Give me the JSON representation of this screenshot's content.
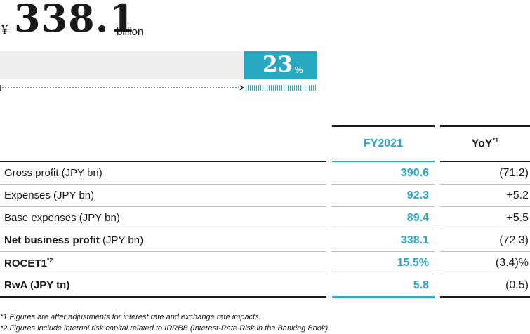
{
  "headline": {
    "currency": "¥",
    "value": "338.1",
    "unit": "billion"
  },
  "share_bar": {
    "percent": 23,
    "value": "23",
    "sign": "%",
    "fill_color": "#29a8c4",
    "bg_color": "#efefef"
  },
  "table": {
    "headers": {
      "fy": "FY2021",
      "yoy": "YoY",
      "yoy_note": "*1"
    },
    "rows": [
      {
        "label": "Gross profit (JPY bn)",
        "fy": "390.6",
        "yoy": "(71.2)"
      },
      {
        "label": "Expenses (JPY bn)",
        "fy": "92.3",
        "yoy": "+5.2"
      },
      {
        "label": "Base expenses (JPY bn)",
        "fy": "89.4",
        "yoy": "+5.5"
      },
      {
        "label_bold": "Net business profit",
        "label_rest": " (JPY bn)",
        "fy": "338.1",
        "yoy": "(72.3)"
      },
      {
        "label": "ROCET1",
        "label_note": "*2",
        "fy": "15.5%",
        "yoy": "(3.4)%"
      },
      {
        "label": "RwA (JPY tn)",
        "fy": "5.8",
        "yoy": "(0.5)"
      }
    ]
  },
  "notes": [
    "*1 Figures are after adjustments for interest rate and exchange rate impacts.",
    "*2 Figures include internal risk capital related to IRRBB (Interest-Rate Risk in the Banking Book)."
  ]
}
